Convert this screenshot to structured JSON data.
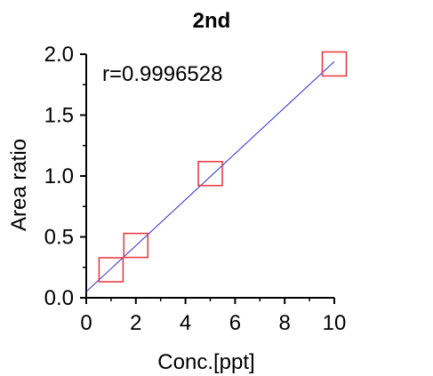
{
  "chart_data": {
    "type": "scatter",
    "title": "2nd",
    "xlabel": "Conc.[ppt]",
    "ylabel": "Area ratio",
    "xlim": [
      0,
      10
    ],
    "ylim": [
      0,
      2.0
    ],
    "xticks": [
      "0",
      "2",
      "4",
      "6",
      "8",
      "10"
    ],
    "yticks": [
      "0.0",
      "0.5",
      "1.0",
      "1.5",
      "2.0"
    ],
    "annotation": "r=0.9996528",
    "grid": false,
    "points": [
      {
        "x": 1,
        "y": 0.23
      },
      {
        "x": 2,
        "y": 0.43
      },
      {
        "x": 5,
        "y": 1.02
      },
      {
        "x": 10,
        "y": 1.92
      }
    ],
    "fit_line": {
      "x": [
        0,
        10
      ],
      "y": [
        0.05,
        1.94
      ]
    },
    "colors": {
      "marker": "#e8343a",
      "fit_line": "#2b2bd8",
      "axis": "#000000"
    }
  }
}
